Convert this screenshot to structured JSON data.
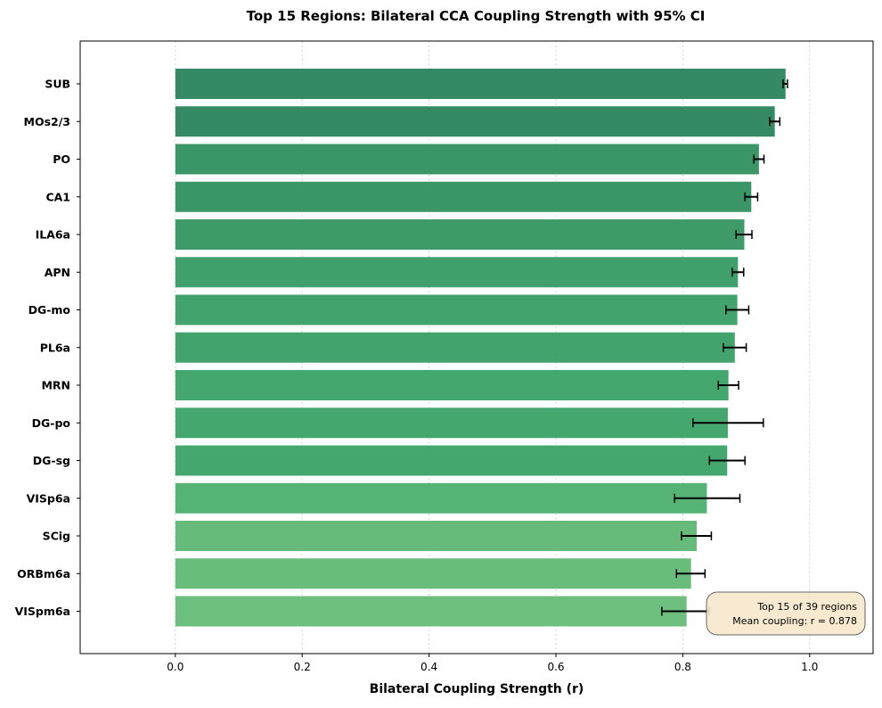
{
  "chart_data": {
    "type": "bar",
    "orientation": "horizontal",
    "title": "Top 15 Regions: Bilateral CCA Coupling Strength with 95% CI",
    "xlabel": "Bilateral Coupling Strength (r)",
    "ylabel": "",
    "xlim": [
      -0.15,
      1.1
    ],
    "xticks": [
      0.0,
      0.2,
      0.4,
      0.6,
      0.8,
      1.0
    ],
    "xtick_labels": [
      "0.0",
      "0.2",
      "0.4",
      "0.6",
      "0.8",
      "1.0"
    ],
    "grid": "vertical dotted",
    "categories": [
      "SUB",
      "MOs2/3",
      "PO",
      "CA1",
      "ILA6a",
      "APN",
      "DG-mo",
      "PL6a",
      "MRN",
      "DG-po",
      "DG-sg",
      "VISp6a",
      "SCig",
      "ORBm6a",
      "VISpm6a"
    ],
    "values": [
      0.962,
      0.945,
      0.92,
      0.908,
      0.897,
      0.887,
      0.886,
      0.882,
      0.872,
      0.871,
      0.87,
      0.838,
      0.822,
      0.813,
      0.806
    ],
    "ci_low": [
      0.958,
      0.937,
      0.912,
      0.898,
      0.884,
      0.878,
      0.868,
      0.864,
      0.856,
      0.816,
      0.842,
      0.787,
      0.798,
      0.79,
      0.767
    ],
    "ci_high": [
      0.965,
      0.953,
      0.928,
      0.918,
      0.909,
      0.896,
      0.904,
      0.9,
      0.888,
      0.927,
      0.898,
      0.89,
      0.845,
      0.835,
      0.842
    ],
    "bar_colors": [
      "#348a64",
      "#348a64",
      "#3a9567",
      "#3a9567",
      "#3e9b69",
      "#40a06b",
      "#42a36c",
      "#42a36c",
      "#44a86e",
      "#44a86e",
      "#44a86e",
      "#55b475",
      "#66bb7a",
      "#68bd7b",
      "#6cbf7d"
    ],
    "annotation": {
      "line1": "Top 15 of 39 regions",
      "line2": "Mean coupling: r = 0.878",
      "placement": "bottom-right",
      "background": "#f8e8cc"
    }
  }
}
